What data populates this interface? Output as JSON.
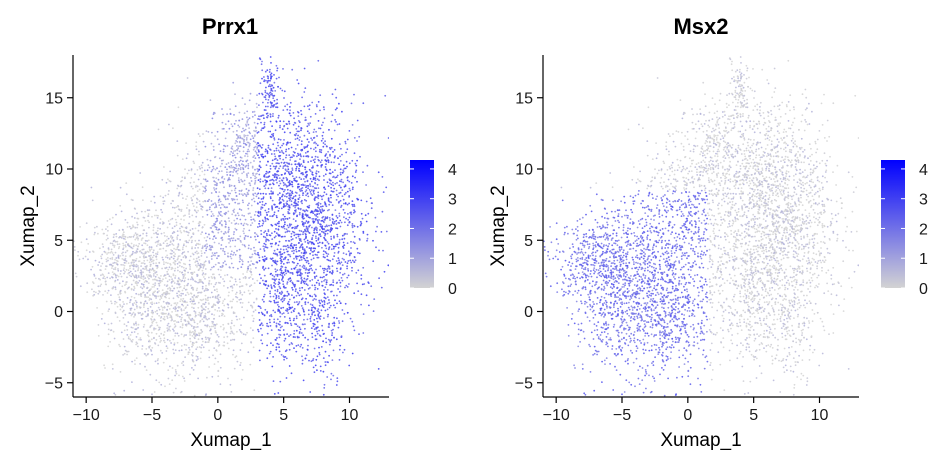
{
  "colors": {
    "low": "#d3d3d3",
    "high": "#0000ff",
    "axis": "#000000"
  },
  "chart_data": [
    {
      "type": "scatter",
      "title": "Prrx1",
      "xlabel": "Xumap_1",
      "ylabel": "Xumap_2",
      "xlim": [
        -11,
        13
      ],
      "ylim": [
        -6,
        18
      ],
      "x_ticks": [
        -10,
        -5,
        0,
        5,
        10
      ],
      "x_tick_labels": [
        "−10",
        "−5",
        "0",
        "5",
        "10"
      ],
      "y_ticks": [
        -5,
        0,
        5,
        10,
        15
      ],
      "y_tick_labels": [
        "−5",
        "0",
        "5",
        "10",
        "15"
      ],
      "color_scale": {
        "min": 0,
        "max": 4.3,
        "ticks": [
          0,
          1,
          2,
          3,
          4
        ],
        "tick_labels": [
          "0",
          "1",
          "2",
          "3",
          "4"
        ]
      },
      "expression_regions": [
        {
          "region": "x from 3 to 11, y from -5 to 13",
          "level": 2.5
        },
        {
          "region": "x from -2 to 3, y from 3 to 14",
          "level": 1.0
        },
        {
          "region": "x from -10 to 0, y from -3 to 7",
          "level": 0.2
        }
      ]
    },
    {
      "type": "scatter",
      "title": "Msx2",
      "xlabel": "Xumap_1",
      "ylabel": "Xumap_2",
      "xlim": [
        -11,
        13
      ],
      "ylim": [
        -6,
        18
      ],
      "x_ticks": [
        -10,
        -5,
        0,
        5,
        10
      ],
      "x_tick_labels": [
        "−10",
        "−5",
        "0",
        "5",
        "10"
      ],
      "y_ticks": [
        -5,
        0,
        5,
        10,
        15
      ],
      "y_tick_labels": [
        "−5",
        "0",
        "5",
        "10",
        "15"
      ],
      "color_scale": {
        "min": 0,
        "max": 4.3,
        "ticks": [
          0,
          1,
          2,
          3,
          4
        ],
        "tick_labels": [
          "0",
          "1",
          "2",
          "3",
          "4"
        ]
      },
      "expression_regions": [
        {
          "region": "x from -10 to 2, y from -3 to 8",
          "level": 2.0
        },
        {
          "region": "x from 2 to 11, y from -5 to 17",
          "level": 0.1
        }
      ]
    }
  ]
}
